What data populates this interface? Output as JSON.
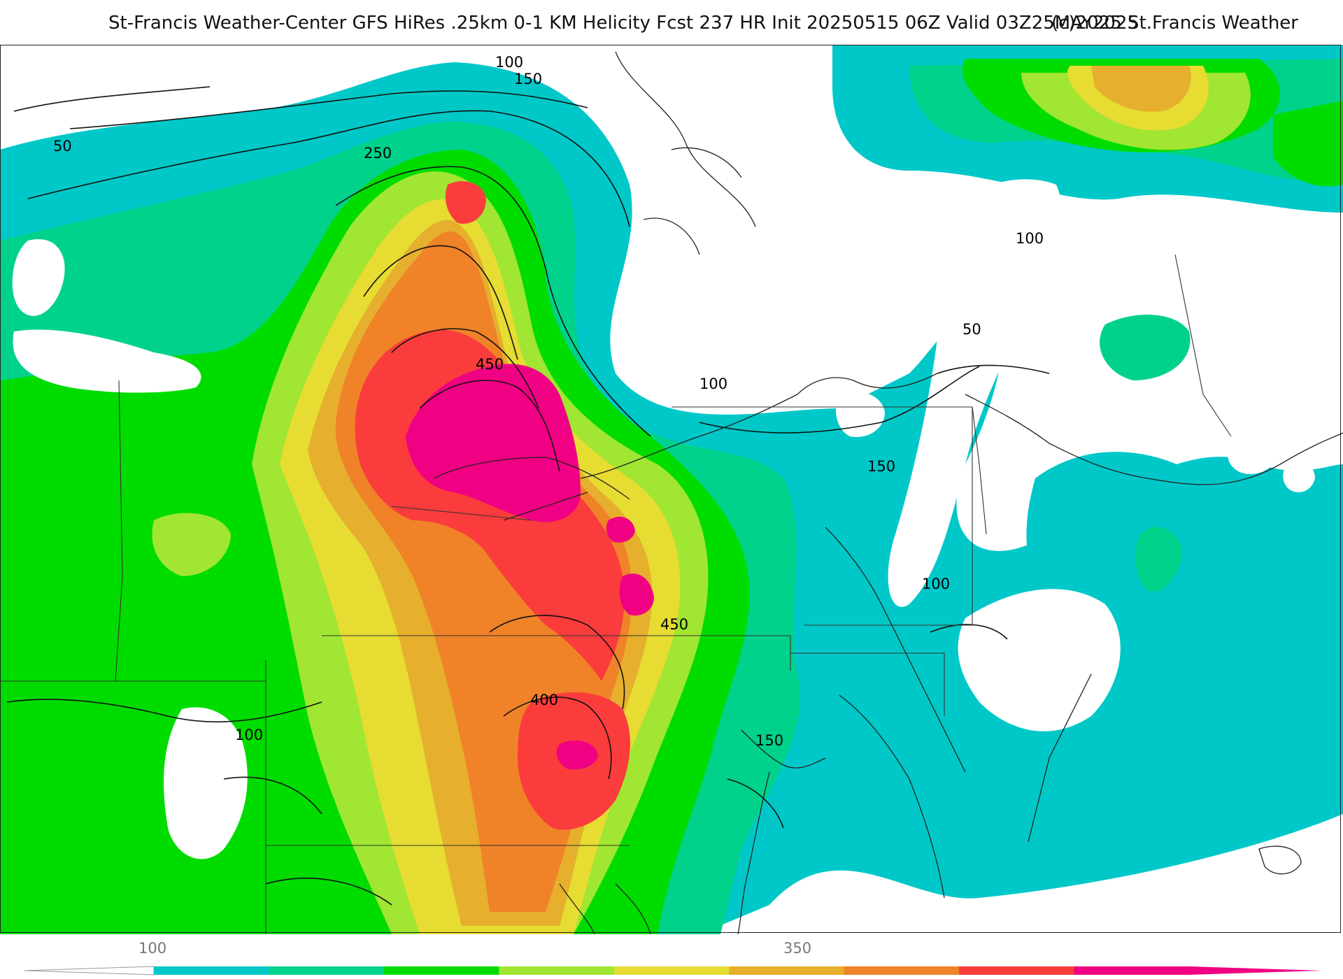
{
  "header": {
    "title": "St-Francis Weather-Center GFS HiRes .25km 0-1 KM Helicity Fcst 237 HR Init 20250515 06Z  Valid 03Z25MAY2025",
    "copyright": "(c)2025 St.Francis Weather"
  },
  "map": {
    "field": "0-1 KM Helicity",
    "contour_labels": [
      "100",
      "150",
      "50",
      "250",
      "450",
      "100",
      "50",
      "100",
      "150",
      "100",
      "450",
      "400",
      "100",
      "150"
    ]
  },
  "legend": {
    "tick_labels": [
      "100",
      "350"
    ],
    "colors": [
      "#00c8c8",
      "#00d28c",
      "#00dc00",
      "#a0e632",
      "#e6dc32",
      "#e6af2d",
      "#f08228",
      "#fa3c3c",
      "#f00082"
    ]
  }
}
